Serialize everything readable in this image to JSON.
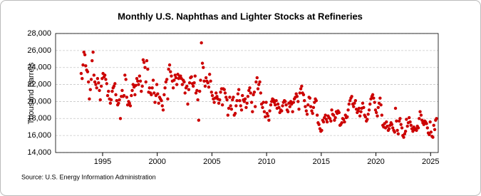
{
  "chart_data": {
    "type": "scatter",
    "title": "Monthly U.S. Naphthas and Lighter Stocks at Refineries",
    "y_label": "Thousand Barrels",
    "source": "Source: U.S. Energy Information Administration",
    "color": "#cc0000",
    "grid": true,
    "xlim": [
      1990.7,
      2025.7
    ],
    "xticks": [
      1995,
      2000,
      2005,
      2010,
      2015,
      2020,
      2025
    ],
    "ylim": [
      14000,
      28000
    ],
    "yticks": [
      {
        "value": 14000,
        "label": "14,000"
      },
      {
        "value": 16000,
        "label": "16,000"
      },
      {
        "value": 18000,
        "label": "18,000"
      },
      {
        "value": 20000,
        "label": "20,000"
      },
      {
        "value": 22000,
        "label": "22,000"
      },
      {
        "value": 24000,
        "label": "24,000"
      },
      {
        "value": 26000,
        "label": "26,000"
      },
      {
        "value": 28000,
        "label": "28,000"
      }
    ],
    "x": [
      1993.04,
      1993.13,
      1993.21,
      1993.29,
      1993.38,
      1993.46,
      1993.54,
      1993.63,
      1993.71,
      1993.79,
      1993.88,
      1993.96,
      1994.04,
      1994.13,
      1994.21,
      1994.29,
      1994.38,
      1994.46,
      1994.54,
      1994.63,
      1994.71,
      1994.79,
      1994.88,
      1994.96,
      1995.04,
      1995.13,
      1995.21,
      1995.29,
      1995.38,
      1995.46,
      1995.54,
      1995.63,
      1995.71,
      1995.79,
      1995.88,
      1995.96,
      1996.04,
      1996.13,
      1996.21,
      1996.29,
      1996.38,
      1996.46,
      1996.54,
      1996.63,
      1996.71,
      1996.79,
      1996.88,
      1996.96,
      1997.04,
      1997.13,
      1997.21,
      1997.29,
      1997.38,
      1997.46,
      1997.54,
      1997.63,
      1997.71,
      1997.79,
      1997.88,
      1997.96,
      1998.04,
      1998.13,
      1998.21,
      1998.29,
      1998.38,
      1998.46,
      1998.54,
      1998.63,
      1998.71,
      1998.79,
      1998.88,
      1998.96,
      1999.04,
      1999.13,
      1999.21,
      1999.29,
      1999.38,
      1999.46,
      1999.54,
      1999.63,
      1999.71,
      1999.79,
      1999.88,
      1999.96,
      2000.04,
      2000.13,
      2000.21,
      2000.29,
      2000.38,
      2000.46,
      2000.54,
      2000.63,
      2000.71,
      2000.79,
      2000.88,
      2000.96,
      2001.04,
      2001.13,
      2001.21,
      2001.29,
      2001.38,
      2001.46,
      2001.54,
      2001.63,
      2001.71,
      2001.79,
      2001.88,
      2001.96,
      2002.04,
      2002.13,
      2002.21,
      2002.29,
      2002.38,
      2002.46,
      2002.54,
      2002.63,
      2002.71,
      2002.79,
      2002.88,
      2002.96,
      2003.04,
      2003.13,
      2003.21,
      2003.29,
      2003.38,
      2003.46,
      2003.54,
      2003.63,
      2003.71,
      2003.79,
      2003.88,
      2003.96,
      2004.04,
      2004.13,
      2004.21,
      2004.29,
      2004.38,
      2004.46,
      2004.54,
      2004.63,
      2004.71,
      2004.79,
      2004.88,
      2004.96,
      2005.04,
      2005.13,
      2005.21,
      2005.29,
      2005.38,
      2005.46,
      2005.54,
      2005.63,
      2005.71,
      2005.79,
      2005.88,
      2005.96,
      2006.04,
      2006.13,
      2006.21,
      2006.29,
      2006.38,
      2006.46,
      2006.54,
      2006.63,
      2006.71,
      2006.79,
      2006.88,
      2006.96,
      2007.04,
      2007.13,
      2007.21,
      2007.29,
      2007.38,
      2007.46,
      2007.54,
      2007.63,
      2007.71,
      2007.79,
      2007.88,
      2007.96,
      2008.04,
      2008.13,
      2008.21,
      2008.29,
      2008.38,
      2008.46,
      2008.54,
      2008.63,
      2008.71,
      2008.79,
      2008.88,
      2008.96,
      2009.04,
      2009.13,
      2009.21,
      2009.29,
      2009.38,
      2009.46,
      2009.54,
      2009.63,
      2009.71,
      2009.79,
      2009.88,
      2009.96,
      2010.04,
      2010.13,
      2010.21,
      2010.29,
      2010.38,
      2010.46,
      2010.54,
      2010.63,
      2010.71,
      2010.79,
      2010.88,
      2010.96,
      2011.04,
      2011.13,
      2011.21,
      2011.29,
      2011.38,
      2011.46,
      2011.54,
      2011.63,
      2011.71,
      2011.79,
      2011.88,
      2011.96,
      2012.04,
      2012.13,
      2012.21,
      2012.29,
      2012.38,
      2012.46,
      2012.54,
      2012.63,
      2012.71,
      2012.79,
      2012.88,
      2012.96,
      2013.04,
      2013.13,
      2013.21,
      2013.29,
      2013.38,
      2013.46,
      2013.54,
      2013.63,
      2013.71,
      2013.79,
      2013.88,
      2013.96,
      2014.04,
      2014.13,
      2014.21,
      2014.29,
      2014.38,
      2014.46,
      2014.54,
      2014.63,
      2014.71,
      2014.79,
      2014.88,
      2014.96,
      2015.04,
      2015.13,
      2015.21,
      2015.29,
      2015.38,
      2015.46,
      2015.54,
      2015.63,
      2015.71,
      2015.79,
      2015.88,
      2015.96,
      2016.04,
      2016.13,
      2016.21,
      2016.29,
      2016.38,
      2016.46,
      2016.54,
      2016.63,
      2016.71,
      2016.79,
      2016.88,
      2016.96,
      2017.04,
      2017.13,
      2017.21,
      2017.29,
      2017.38,
      2017.46,
      2017.54,
      2017.63,
      2017.71,
      2017.79,
      2017.88,
      2017.96,
      2018.04,
      2018.13,
      2018.21,
      2018.29,
      2018.38,
      2018.46,
      2018.54,
      2018.63,
      2018.71,
      2018.79,
      2018.88,
      2018.96,
      2019.04,
      2019.13,
      2019.21,
      2019.29,
      2019.38,
      2019.46,
      2019.54,
      2019.63,
      2019.71,
      2019.79,
      2019.88,
      2019.96,
      2020.04,
      2020.13,
      2020.21,
      2020.29,
      2020.38,
      2020.46,
      2020.54,
      2020.63,
      2020.71,
      2020.79,
      2020.88,
      2020.96,
      2021.04,
      2021.13,
      2021.21,
      2021.29,
      2021.38,
      2021.46,
      2021.54,
      2021.63,
      2021.71,
      2021.79,
      2021.88,
      2021.96,
      2022.04,
      2022.13,
      2022.21,
      2022.29,
      2022.38,
      2022.46,
      2022.54,
      2022.63,
      2022.71,
      2022.79,
      2022.88,
      2022.96,
      2023.04,
      2023.13,
      2023.21,
      2023.29,
      2023.38,
      2023.46,
      2023.54,
      2023.63,
      2023.71,
      2023.79,
      2023.88,
      2023.96,
      2024.04,
      2024.13,
      2024.21,
      2024.29,
      2024.38,
      2024.46,
      2024.54,
      2024.63,
      2024.71,
      2024.79,
      2024.88,
      2024.96,
      2025.04,
      2025.13,
      2025.21,
      2025.29,
      2025.38,
      2025.46,
      2025.54
    ],
    "values": [
      23300,
      22700,
      24300,
      25800,
      25500,
      24200,
      23700,
      23500,
      22300,
      20300,
      21400,
      22600,
      24800,
      25800,
      23100,
      22300,
      22000,
      21600,
      22700,
      22200,
      21300,
      20200,
      21800,
      22700,
      23300,
      22900,
      23100,
      22600,
      22100,
      20700,
      21200,
      20300,
      19800,
      20200,
      21200,
      21600,
      21800,
      22100,
      20800,
      20100,
      19600,
      19800,
      20200,
      18000,
      20600,
      21300,
      20600,
      20700,
      23100,
      22600,
      20500,
      19600,
      20000,
      19800,
      19500,
      20700,
      21300,
      22000,
      21700,
      20800,
      21900,
      22700,
      22400,
      22000,
      23000,
      22400,
      21200,
      21800,
      24900,
      24600,
      24000,
      22300,
      24800,
      23800,
      21100,
      21600,
      21000,
      20800,
      21600,
      22500,
      21000,
      19900,
      20700,
      22000,
      20900,
      19800,
      20500,
      20300,
      20100,
      19500,
      19000,
      20800,
      21600,
      22300,
      22600,
      20300,
      23800,
      24300,
      23500,
      23000,
      22400,
      21600,
      22500,
      23100,
      22800,
      22000,
      23200,
      22700,
      23000,
      23000,
      22700,
      22000,
      22500,
      22300,
      21000,
      21600,
      21800,
      19700,
      21400,
      22200,
      22800,
      22900,
      22100,
      21800,
      22200,
      23000,
      21000,
      21300,
      20200,
      17800,
      21200,
      22500,
      26900,
      24500,
      24000,
      22400,
      21800,
      22800,
      22400,
      22200,
      21700,
      23200,
      22400,
      21100,
      20700,
      20300,
      19900,
      20400,
      21000,
      20600,
      20300,
      19800,
      20200,
      21100,
      21500,
      19600,
      21500,
      21400,
      21000,
      20500,
      20200,
      18400,
      19200,
      20500,
      19500,
      19100,
      20200,
      20500,
      18400,
      18600,
      19500,
      20100,
      20900,
      21400,
      20100,
      19500,
      19000,
      20700,
      20200,
      20000,
      20300,
      19300,
      19800,
      20600,
      21300,
      21600,
      21000,
      19900,
      18800,
      20800,
      21100,
      19400,
      22300,
      22800,
      21500,
      22000,
      22300,
      21000,
      19700,
      19300,
      19900,
      18800,
      18200,
      19900,
      18600,
      18300,
      17800,
      18900,
      19600,
      20000,
      20300,
      20200,
      19900,
      19600,
      20100,
      19200,
      19700,
      19300,
      18700,
      19000,
      18900,
      19500,
      19900,
      20100,
      20000,
      19600,
      19000,
      18800,
      19800,
      19400,
      20000,
      19700,
      18800,
      19900,
      20300,
      20500,
      20900,
      20600,
      20000,
      19100,
      21000,
      21500,
      21800,
      21000,
      20800,
      20100,
      19400,
      18900,
      18500,
      19600,
      20500,
      20400,
      19400,
      18900,
      18600,
      19300,
      19900,
      20300,
      20100,
      18400,
      17500,
      17300,
      16800,
      16500,
      16600,
      17800,
      17600,
      18100,
      18400,
      17900,
      17600,
      18300,
      18100,
      18000,
      17700,
      19000,
      18500,
      18400,
      17800,
      18100,
      18800,
      18600,
      18900,
      18700,
      17200,
      17300,
      17500,
      18000,
      17900,
      17600,
      18400,
      18100,
      18200,
      19000,
      19700,
      20100,
      20400,
      20600,
      19700,
      19400,
      19800,
      20100,
      19100,
      18700,
      18900,
      19200,
      18300,
      18800,
      19200,
      19800,
      19300,
      18400,
      18200,
      17700,
      17900,
      18500,
      19000,
      19700,
      20300,
      20600,
      20800,
      20400,
      19900,
      19000,
      18700,
      18300,
      19300,
      19800,
      20400,
      19600,
      18400,
      17200,
      17000,
      17400,
      16900,
      17600,
      17100,
      16600,
      16800,
      17200,
      17500,
      17300,
      16900,
      16600,
      16400,
      19200,
      17700,
      16600,
      16200,
      17700,
      18000,
      17300,
      16900,
      16000,
      15800,
      16200,
      16500,
      17900,
      17100,
      17500,
      18100,
      17600,
      17200,
      16800,
      16500,
      17000,
      16700,
      16800,
      16600,
      17100,
      16900,
      18000,
      18800,
      18400,
      17800,
      17500,
      17300,
      17700,
      17600,
      17400,
      16900,
      16300,
      16100,
      17600,
      16400,
      15900,
      15800,
      17200,
      16700,
      17800,
      18000
    ]
  }
}
